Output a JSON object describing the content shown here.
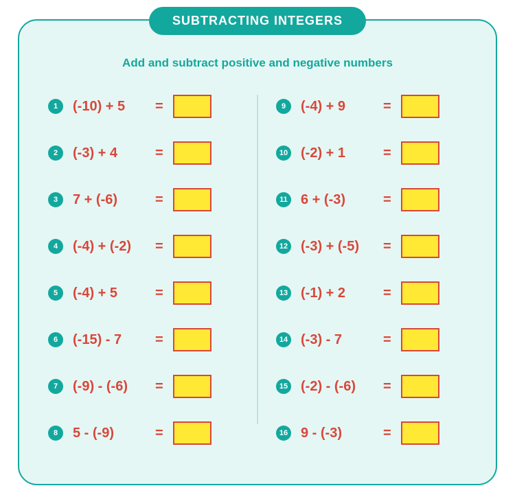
{
  "title": "SUBTRACTING INTEGERS",
  "subtitle": "Add and subtract positive and negative numbers",
  "colors": {
    "teal": "#13a89e",
    "card_bg": "#e5f7f4",
    "expr_red": "#d9463a",
    "answer_yellow": "#ffe934",
    "divider": "#b9e5df"
  },
  "left": [
    {
      "n": "1",
      "expr": "(-10) + 5"
    },
    {
      "n": "2",
      "expr": "(-3) + 4"
    },
    {
      "n": "3",
      "expr": "7 + (-6)"
    },
    {
      "n": "4",
      "expr": "(-4) + (-2)"
    },
    {
      "n": "5",
      "expr": "(-4) + 5"
    },
    {
      "n": "6",
      "expr": "(-15) - 7"
    },
    {
      "n": "7",
      "expr": "(-9) - (-6)"
    },
    {
      "n": "8",
      "expr": "5 - (-9)"
    }
  ],
  "right": [
    {
      "n": "9",
      "expr": "(-4) + 9"
    },
    {
      "n": "10",
      "expr": "(-2) + 1"
    },
    {
      "n": "11",
      "expr": "6 + (-3)"
    },
    {
      "n": "12",
      "expr": "(-3) + (-5)"
    },
    {
      "n": "13",
      "expr": "(-1) + 2"
    },
    {
      "n": "14",
      "expr": "(-3) - 7"
    },
    {
      "n": "15",
      "expr": "(-2) - (-6)"
    },
    {
      "n": "16",
      "expr": "9 - (-3)"
    }
  ],
  "eq": "="
}
